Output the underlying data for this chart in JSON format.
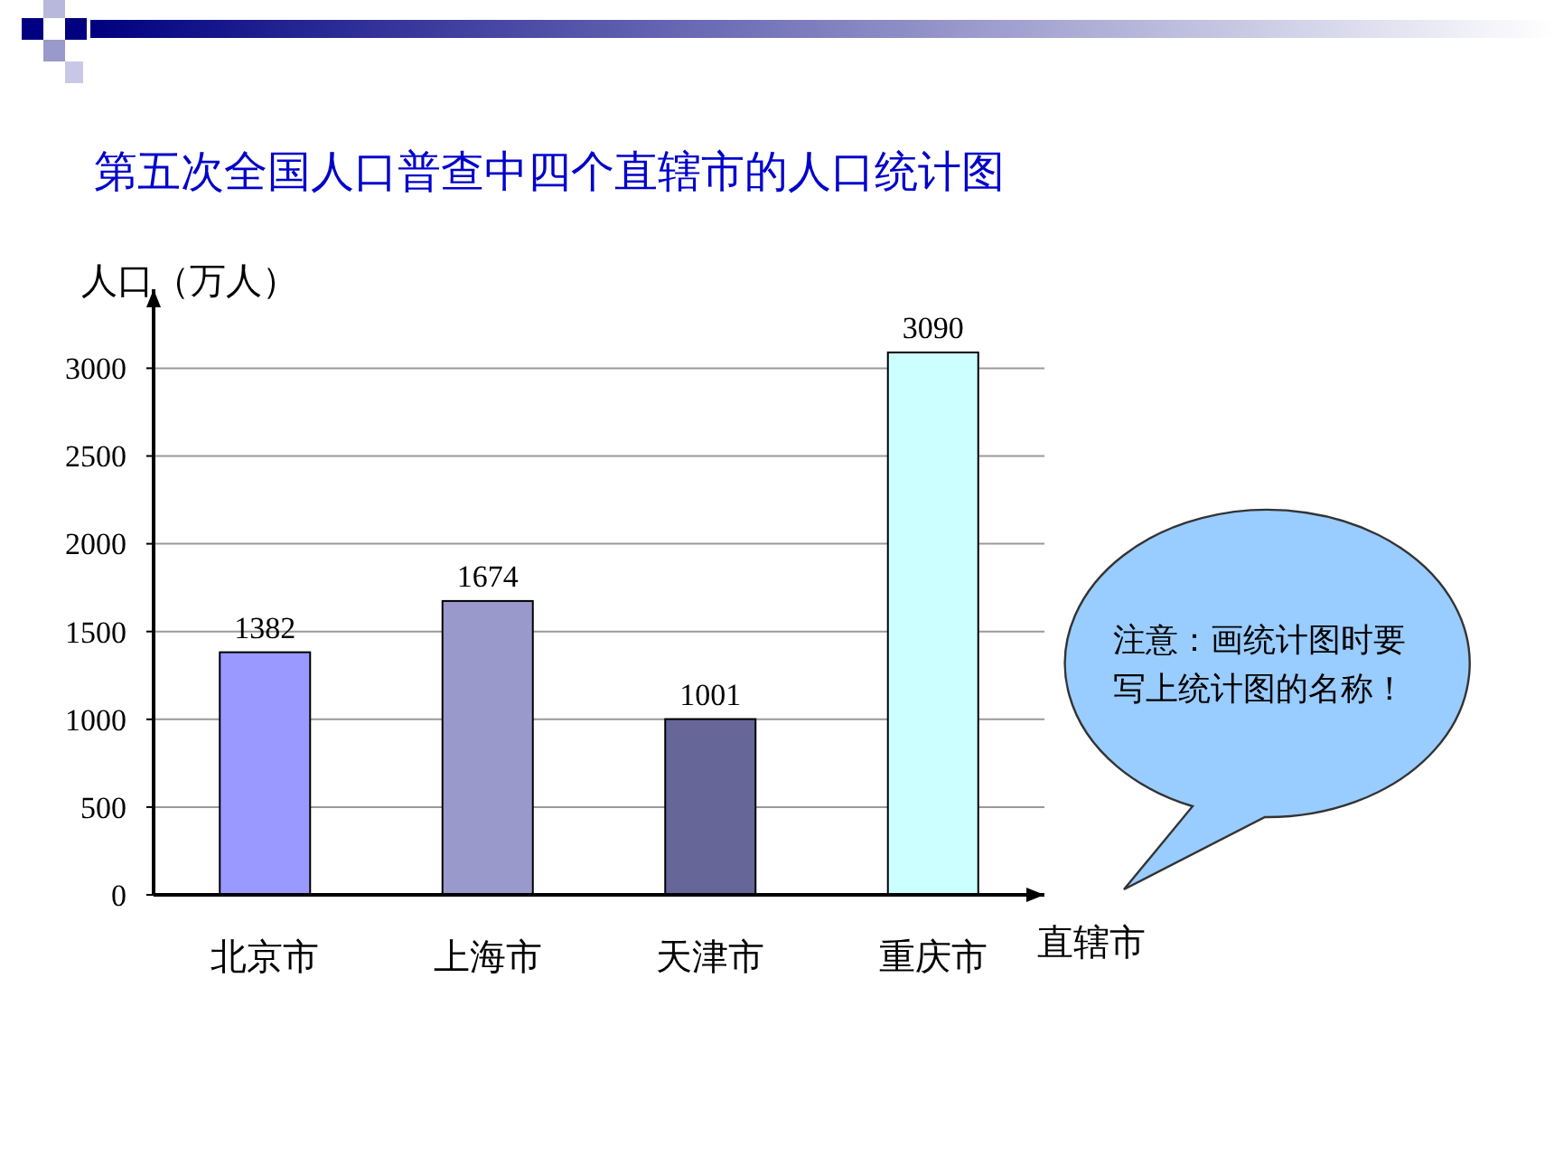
{
  "chart_data": {
    "type": "bar",
    "title": "第五次全国人口普查中四个直辖市的人口统计图",
    "ylabel": "人口（万人）",
    "xlabel": "直辖市",
    "categories": [
      "北京市",
      "上海市",
      "天津市",
      "重庆市"
    ],
    "values": [
      1382,
      1674,
      1001,
      3090
    ],
    "colors": [
      "#9999ff",
      "#9999cc",
      "#666699",
      "#ccffff"
    ],
    "ylim": [
      0,
      3450
    ],
    "yticks": [
      0,
      500,
      1000,
      1500,
      2000,
      2500,
      3000
    ],
    "grid": "y",
    "data_labels": true,
    "annotations": [
      "注意：画统计图时要写上统计图的名称！"
    ]
  }
}
